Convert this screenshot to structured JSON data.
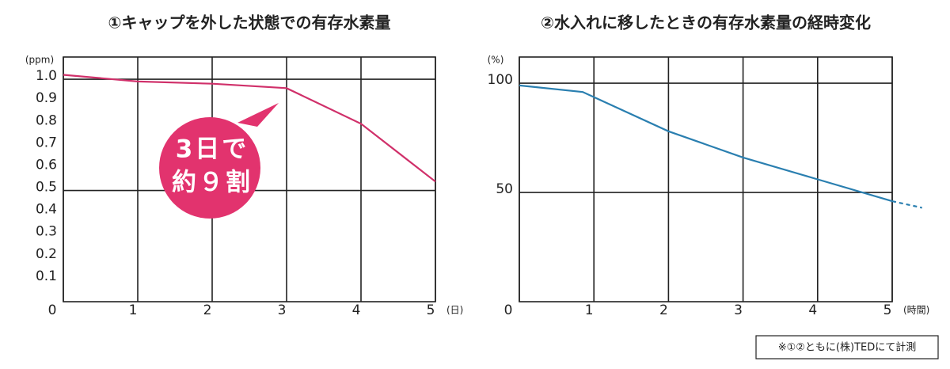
{
  "chart_data": [
    {
      "type": "line",
      "title": "①キャップを外した状態での有存水素量",
      "y_unit": "(ppm)",
      "x_unit": "(日)",
      "x": [
        0,
        1,
        2,
        3,
        4,
        5
      ],
      "values": [
        1.02,
        0.99,
        0.98,
        0.96,
        0.8,
        0.54
      ],
      "color": "#d0306a",
      "xlim": [
        0,
        5
      ],
      "ylim": [
        0,
        1.1
      ],
      "xticks": [
        0,
        1,
        2,
        3,
        4,
        5
      ],
      "yticks": [
        0.1,
        0.2,
        0.3,
        0.4,
        0.5,
        0.6,
        0.7,
        0.8,
        0.9,
        {
          "value": 1,
          "label": "1.0"
        }
      ],
      "ygrid": [
        0.5,
        1
      ],
      "annotation": [
        "3日で",
        "約９割"
      ],
      "annotation_color": "#e2336e"
    },
    {
      "type": "line",
      "title": "②水入れに移したときの有存水素量の経時変化",
      "y_unit": "(%)",
      "x_unit": "(時間)",
      "x": [
        0,
        0.85,
        2,
        3,
        4,
        5
      ],
      "values": [
        99,
        96,
        78,
        66,
        56,
        46
      ],
      "color": "#2a7fb0",
      "extension": {
        "x": [
          5,
          5.4
        ],
        "values": [
          46,
          43
        ]
      },
      "xlim": [
        0,
        5
      ],
      "ylim": [
        0,
        112
      ],
      "xticks": [
        0,
        1,
        2,
        3,
        4,
        5
      ],
      "yticks": [
        50,
        100
      ],
      "ygrid": [
        50,
        100
      ]
    }
  ],
  "footnote": "※①②ともに(株)TEDにて計測"
}
